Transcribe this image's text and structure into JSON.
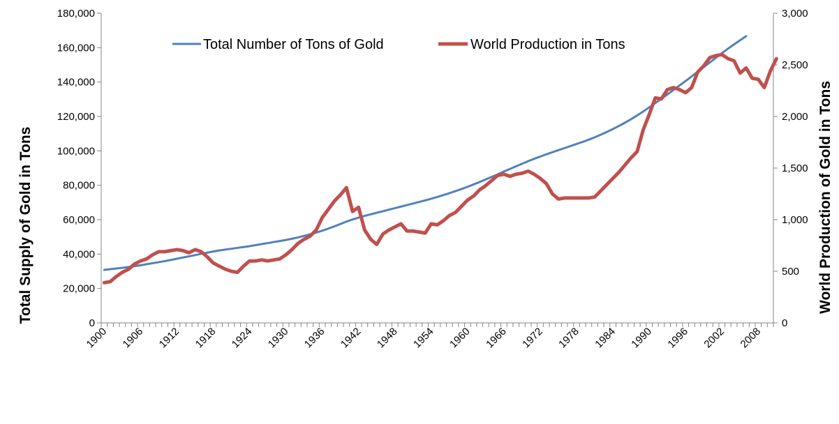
{
  "chart_data": {
    "type": "line",
    "xlabel": "",
    "ylabel": "Total Supply of Gold in Tons",
    "y2label": "World Production of Gold in Tons",
    "ylim": [
      0,
      180000
    ],
    "y2lim": [
      0,
      3000
    ],
    "y_ticks": [
      "0",
      "20,000",
      "40,000",
      "60,000",
      "80,000",
      "100,000",
      "120,000",
      "140,000",
      "160,000",
      "180,000"
    ],
    "y2_ticks": [
      "0",
      "500",
      "1,000",
      "1,500",
      "2,000",
      "2,500",
      "3,000"
    ],
    "x_tick_labels": [
      "1900",
      "1906",
      "1912",
      "1918",
      "1924",
      "1930",
      "1936",
      "1942",
      "1948",
      "1954",
      "1960",
      "1966",
      "1972",
      "1978",
      "1984",
      "1990",
      "1996",
      "2002",
      "2008"
    ],
    "x_start": 1900,
    "x_end": 2010,
    "legend_position": "top",
    "grid": false,
    "series": [
      {
        "name": "Total Number of Tons of Gold",
        "axis": "left",
        "color": "#4F81BD",
        "values": [
          30800,
          31200,
          31600,
          32000,
          32500,
          33000,
          33500,
          34100,
          34700,
          35300,
          35900,
          36600,
          37300,
          38000,
          38700,
          39400,
          40100,
          40800,
          41500,
          42100,
          42600,
          43100,
          43600,
          44100,
          44600,
          45200,
          45800,
          46400,
          47000,
          47600,
          48200,
          48900,
          49700,
          50600,
          51500,
          52500,
          53600,
          54800,
          56100,
          57500,
          58900,
          60100,
          61200,
          62200,
          63100,
          64000,
          64900,
          65800,
          66700,
          67600,
          68500,
          69400,
          70300,
          71200,
          72200,
          73200,
          74300,
          75400,
          76600,
          77800,
          79100,
          80500,
          81900,
          83400,
          84900,
          86400,
          88000,
          89500,
          91000,
          92500,
          94000,
          95400,
          96700,
          98000,
          99200,
          100400,
          101600,
          102800,
          104000,
          105200,
          106500,
          107900,
          109400,
          111000,
          112700,
          114500,
          116400,
          118400,
          120600,
          122900,
          125300,
          127800,
          130300,
          132800,
          135400,
          138000,
          140600,
          143300,
          146000,
          148700,
          151400,
          154100,
          156800,
          159400,
          161900,
          164300,
          166700
        ]
      },
      {
        "name": "World Production in Tons",
        "axis": "right",
        "color": "#C0504D",
        "values": [
          390,
          400,
          450,
          490,
          520,
          570,
          600,
          620,
          660,
          690,
          690,
          700,
          710,
          700,
          680,
          710,
          690,
          640,
          580,
          550,
          520,
          500,
          490,
          550,
          600,
          600,
          610,
          600,
          610,
          620,
          660,
          710,
          770,
          810,
          840,
          900,
          1020,
          1100,
          1180,
          1240,
          1310,
          1080,
          1120,
          900,
          810,
          760,
          860,
          900,
          930,
          960,
          890,
          890,
          880,
          870,
          960,
          950,
          990,
          1040,
          1070,
          1130,
          1190,
          1230,
          1290,
          1330,
          1380,
          1430,
          1440,
          1420,
          1440,
          1450,
          1470,
          1440,
          1400,
          1350,
          1250,
          1200,
          1210,
          1210,
          1210,
          1210,
          1210,
          1220,
          1280,
          1340,
          1400,
          1460,
          1530,
          1600,
          1660,
          1870,
          2020,
          2180,
          2170,
          2260,
          2280,
          2260,
          2230,
          2280,
          2430,
          2490,
          2570,
          2590,
          2600,
          2560,
          2540,
          2420,
          2470,
          2370,
          2360,
          2280,
          2440,
          2560
        ]
      }
    ]
  }
}
